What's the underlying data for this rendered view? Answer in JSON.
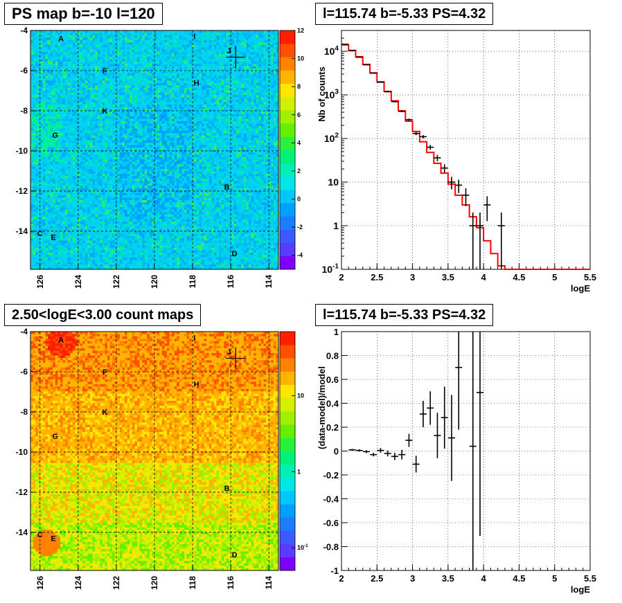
{
  "titles": {
    "ps_map": "PS map b=-10 l=120",
    "spectrum": "l=115.74 b=-5.33 PS=4.32",
    "count_map": "2.50<logE<3.00 count maps",
    "residual": "l=115.74 b=-5.33 PS=4.32"
  },
  "colors": {
    "model_line": "#ff0000",
    "data_points": "#000000",
    "frame": "#000000"
  },
  "chart_data": [
    {
      "id": "ps_map",
      "type": "heatmap",
      "title": "PS map b=-10 l=120",
      "xlabel": "",
      "ylabel": "",
      "xlim": [
        126.5,
        113.5
      ],
      "ylim": [
        -15.9,
        -4
      ],
      "x_ticks": [
        "126",
        "124",
        "122",
        "120",
        "118",
        "116",
        "114"
      ],
      "y_ticks": [
        "-4",
        "-6",
        "-8",
        "-10",
        "-12",
        "-14"
      ],
      "colorbar": {
        "scale": "linear",
        "range": [
          -5,
          12
        ],
        "ticks": [
          "12",
          "10",
          "8",
          "6",
          "4",
          "2",
          "0",
          "-2",
          "-4"
        ]
      },
      "typical_value_range": [
        0,
        2
      ],
      "labels": [
        {
          "text": "A",
          "l": 124.9,
          "b": -4.4
        },
        {
          "text": "I",
          "l": 117.9,
          "b": -4.3
        },
        {
          "text": "J",
          "l": 116.1,
          "b": -5.0
        },
        {
          "text": "F",
          "l": 122.6,
          "b": -6.0
        },
        {
          "text": "H",
          "l": 117.8,
          "b": -6.6
        },
        {
          "text": "K",
          "l": 122.6,
          "b": -8.0
        },
        {
          "text": "G",
          "l": 125.2,
          "b": -9.2
        },
        {
          "text": "B",
          "l": 116.2,
          "b": -11.8
        },
        {
          "text": "C",
          "l": 126.0,
          "b": -14.1
        },
        {
          "text": "E",
          "l": 125.3,
          "b": -14.3
        },
        {
          "text": "D",
          "l": 115.8,
          "b": -15.1
        }
      ],
      "marker": {
        "l": 115.74,
        "b": -5.33
      },
      "grid": true
    },
    {
      "id": "spectrum",
      "type": "line",
      "title": "l=115.74 b=-5.33 PS=4.32",
      "xlabel": "logE",
      "ylabel": "Nb of counts",
      "xlim": [
        2,
        5.5
      ],
      "ylim": [
        0.1,
        30000
      ],
      "log_y": true,
      "x_ticks": [
        "2",
        "2.5",
        "3",
        "3.5",
        "4",
        "4.5",
        "5",
        "5.5"
      ],
      "y_ticks": [
        "10^-1",
        "1",
        "10",
        "10^2",
        "10^3",
        "10^4"
      ],
      "model_series": {
        "name": "",
        "bin_edges": [
          2.0,
          2.1,
          2.2,
          2.3,
          2.4,
          2.5,
          2.6,
          2.7,
          2.8,
          2.9,
          3.0,
          3.1,
          3.2,
          3.3,
          3.4,
          3.5,
          3.6,
          3.7,
          3.8,
          3.9,
          4.0,
          4.1,
          4.2,
          4.3,
          5.5
        ],
        "values": [
          14000,
          10500,
          7500,
          5000,
          3200,
          2000,
          1200,
          730,
          430,
          250,
          145,
          84,
          48,
          27,
          16,
          9,
          5,
          3,
          1.6,
          0.9,
          0.45,
          0.23,
          0.12,
          0.1
        ]
      },
      "data_points": [
        {
          "x": 2.05,
          "y": 14500,
          "ylo": 14380,
          "yhi": 14620
        },
        {
          "x": 2.15,
          "y": 10300,
          "ylo": 10200,
          "yhi": 10400
        },
        {
          "x": 2.25,
          "y": 7300,
          "ylo": 7215,
          "yhi": 7385
        },
        {
          "x": 2.35,
          "y": 4900,
          "ylo": 4830,
          "yhi": 4970
        },
        {
          "x": 2.45,
          "y": 3150,
          "ylo": 3095,
          "yhi": 3205
        },
        {
          "x": 2.55,
          "y": 1950,
          "ylo": 1905,
          "yhi": 1995
        },
        {
          "x": 2.65,
          "y": 1180,
          "ylo": 1145,
          "yhi": 1215
        },
        {
          "x": 2.75,
          "y": 700,
          "ylo": 674,
          "yhi": 726
        },
        {
          "x": 2.85,
          "y": 420,
          "ylo": 400,
          "yhi": 440
        },
        {
          "x": 2.95,
          "y": 270,
          "ylo": 254,
          "yhi": 286
        },
        {
          "x": 3.05,
          "y": 130,
          "ylo": 119,
          "yhi": 141
        },
        {
          "x": 3.15,
          "y": 110,
          "ylo": 100,
          "yhi": 120
        },
        {
          "x": 3.25,
          "y": 63,
          "ylo": 55,
          "yhi": 71
        },
        {
          "x": 3.35,
          "y": 36,
          "ylo": 30,
          "yhi": 42
        },
        {
          "x": 3.45,
          "y": 21,
          "ylo": 16.5,
          "yhi": 25.5
        },
        {
          "x": 3.55,
          "y": 10,
          "ylo": 6.8,
          "yhi": 13.2
        },
        {
          "x": 3.65,
          "y": 8.5,
          "ylo": 5.6,
          "yhi": 11.4
        },
        {
          "x": 3.75,
          "y": 5,
          "ylo": 2.8,
          "yhi": 7.2
        },
        {
          "x": 3.85,
          "y": 1,
          "ylo": 0.1,
          "yhi": 2.0
        },
        {
          "x": 3.95,
          "y": 1,
          "ylo": 0.1,
          "yhi": 2.0
        },
        {
          "x": 4.05,
          "y": 3,
          "ylo": 1.27,
          "yhi": 4.73
        },
        {
          "x": 4.25,
          "y": 1,
          "ylo": 0.1,
          "yhi": 2.0
        }
      ],
      "grid": true
    },
    {
      "id": "count_map",
      "type": "heatmap",
      "title": "2.50<logE<3.00 count maps",
      "xlabel": "",
      "ylabel": "",
      "xlim": [
        126.5,
        113.5
      ],
      "ylim": [
        -15.9,
        -4
      ],
      "x_ticks": [
        "126",
        "124",
        "122",
        "120",
        "118",
        "116",
        "114"
      ],
      "y_ticks": [
        "-4",
        "-6",
        "-8",
        "-10",
        "-12",
        "-14"
      ],
      "colorbar": {
        "scale": "log",
        "range": [
          0.05,
          70
        ],
        "ticks": [
          "10",
          "1",
          "10^-1"
        ]
      },
      "labels": [
        {
          "text": "A",
          "l": 124.9,
          "b": -4.4
        },
        {
          "text": "I",
          "l": 117.9,
          "b": -4.3
        },
        {
          "text": "J",
          "l": 116.1,
          "b": -5.0
        },
        {
          "text": "F",
          "l": 122.6,
          "b": -6.0
        },
        {
          "text": "H",
          "l": 117.8,
          "b": -6.6
        },
        {
          "text": "K",
          "l": 122.6,
          "b": -8.0
        },
        {
          "text": "G",
          "l": 125.2,
          "b": -9.2
        },
        {
          "text": "B",
          "l": 116.2,
          "b": -11.8
        },
        {
          "text": "C",
          "l": 126.0,
          "b": -14.1
        },
        {
          "text": "E",
          "l": 125.3,
          "b": -14.3
        },
        {
          "text": "D",
          "l": 115.8,
          "b": -15.1
        }
      ],
      "marker": {
        "l": 115.74,
        "b": -5.33
      },
      "grid": true
    },
    {
      "id": "residual",
      "type": "scatter",
      "title": "l=115.74 b=-5.33 PS=4.32",
      "xlabel": "logE",
      "ylabel": "(data-model)/model",
      "xlim": [
        2,
        5.5
      ],
      "ylim": [
        -1,
        1
      ],
      "x_ticks": [
        "2",
        "2.5",
        "3",
        "3.5",
        "4",
        "4.5",
        "5",
        "5.5"
      ],
      "y_ticks": [
        "-1",
        "-0.8",
        "-0.6",
        "-0.4",
        "-0.2",
        "0",
        "0.2",
        "0.4",
        "0.6",
        "0.8",
        "1"
      ],
      "data_points": [
        {
          "x": 2.15,
          "y": 0.01,
          "err": 0.008
        },
        {
          "x": 2.25,
          "y": 0.005,
          "err": 0.01
        },
        {
          "x": 2.35,
          "y": -0.005,
          "err": 0.012
        },
        {
          "x": 2.45,
          "y": -0.03,
          "err": 0.015
        },
        {
          "x": 2.55,
          "y": 0.005,
          "err": 0.02
        },
        {
          "x": 2.65,
          "y": -0.02,
          "err": 0.025
        },
        {
          "x": 2.75,
          "y": -0.045,
          "err": 0.03
        },
        {
          "x": 2.85,
          "y": -0.03,
          "err": 0.04
        },
        {
          "x": 2.95,
          "y": 0.09,
          "err": 0.055
        },
        {
          "x": 3.05,
          "y": -0.11,
          "err": 0.07
        },
        {
          "x": 3.15,
          "y": 0.31,
          "err": 0.11
        },
        {
          "x": 3.25,
          "y": 0.36,
          "err": 0.14
        },
        {
          "x": 3.35,
          "y": 0.13,
          "err": 0.19
        },
        {
          "x": 3.45,
          "y": 0.28,
          "err": 0.26
        },
        {
          "x": 3.55,
          "y": 0.11,
          "err": 0.36
        },
        {
          "x": 3.65,
          "y": 0.7,
          "err": 0.52
        },
        {
          "x": 3.85,
          "y": 0.04,
          "err": 1.2
        },
        {
          "x": 3.95,
          "y": 0.49,
          "err": 1.2
        }
      ],
      "grid": true
    }
  ]
}
